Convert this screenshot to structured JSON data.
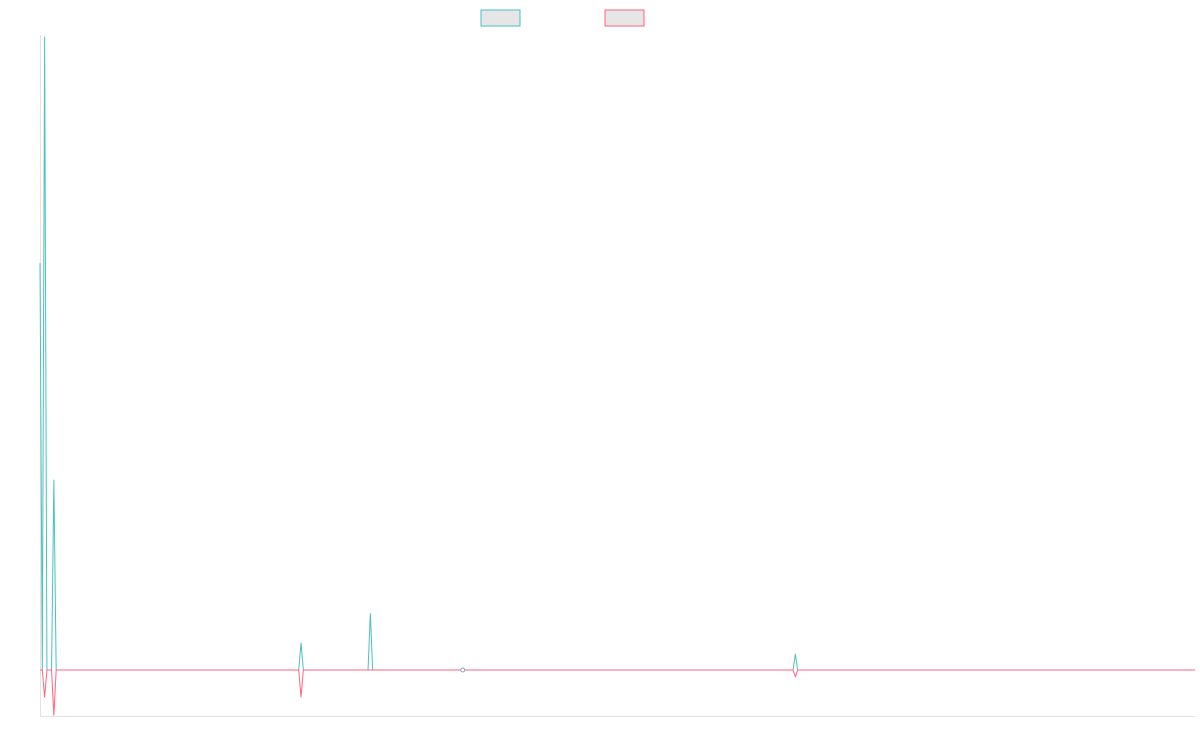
{
  "chart_data": {
    "type": "line",
    "title": "",
    "xlabel": "",
    "ylabel": "",
    "grid": false,
    "legend_position": "top-center",
    "x_range": [
      0,
      1000
    ],
    "ylim": [
      -100,
      1400
    ],
    "x_step": 2,
    "series": [
      {
        "color": "#4bc0c0",
        "fill": "#e6e6e6",
        "spikes": [
          [
            0,
            900
          ],
          [
            4,
            1400
          ],
          [
            12,
            420
          ],
          [
            226,
            60
          ],
          [
            286,
            125
          ],
          [
            654,
            35
          ]
        ]
      },
      {
        "color": "#ff6384",
        "fill": "#e6e6e6",
        "spikes": [
          [
            4,
            -60
          ],
          [
            12,
            -100
          ],
          [
            226,
            -60
          ],
          [
            654,
            -15
          ]
        ]
      }
    ],
    "marker_x": 366
  }
}
